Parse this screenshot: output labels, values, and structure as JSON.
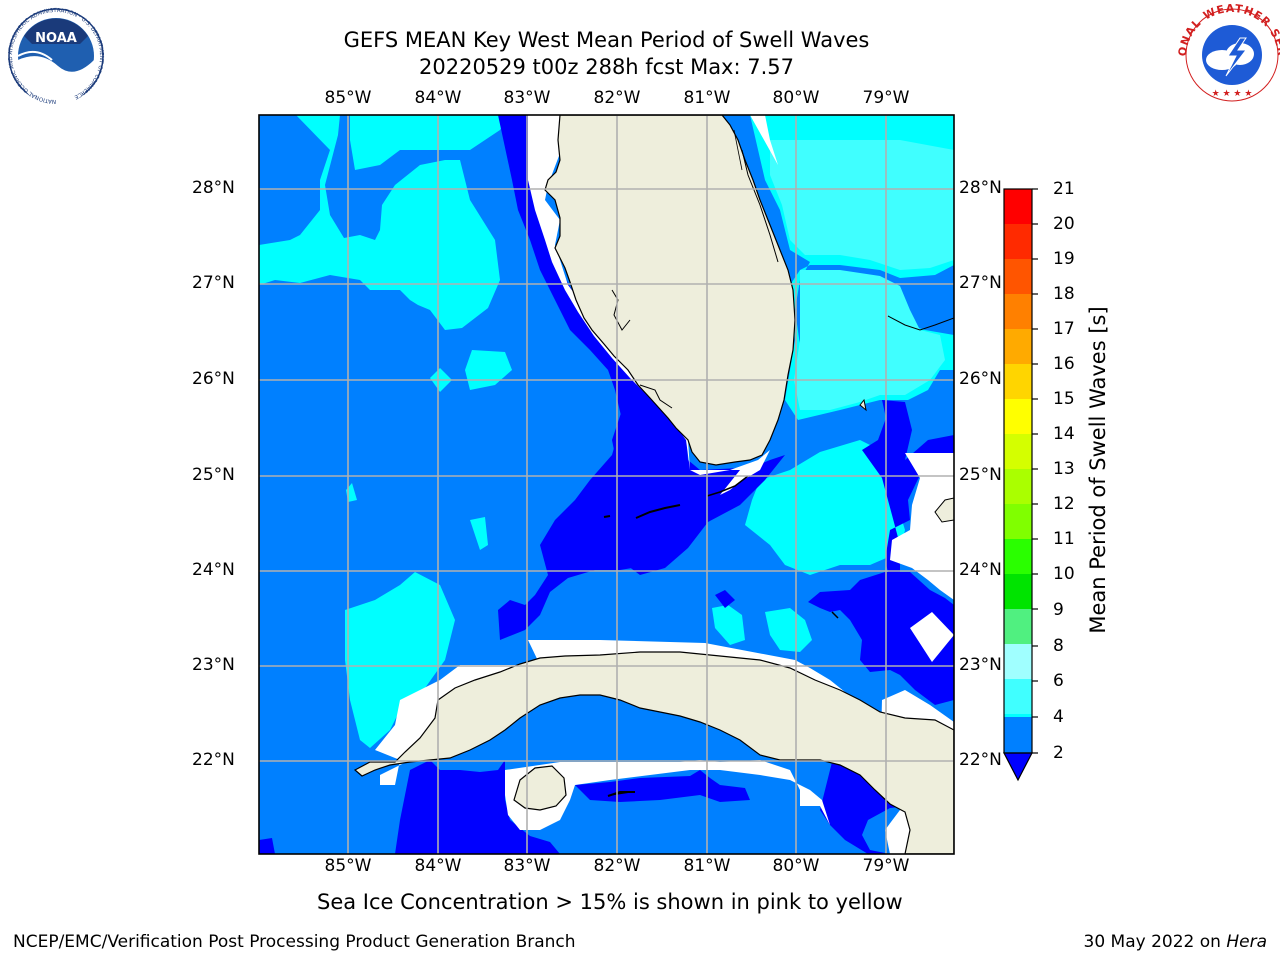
{
  "header": {
    "title_line1": "GEFS MEAN Key West Mean Period of Swell Waves",
    "title_line2": "20220529 t00z 288h fcst   Max: 7.57"
  },
  "logos": {
    "left": {
      "name": "NOAA",
      "ring_text": "NATIONAL OCEANIC AND ATMOSPHERIC ADMINISTRATION · U.S. DEPARTMENT OF COMMERCE"
    },
    "right": {
      "name": "NATIONAL WEATHER SERVICE"
    }
  },
  "map": {
    "lon_labels": [
      "85°W",
      "84°W",
      "83°W",
      "82°W",
      "81°W",
      "80°W",
      "79°W"
    ],
    "lat_labels": [
      "28°N",
      "27°N",
      "26°N",
      "25°N",
      "24°N",
      "23°N",
      "22°N"
    ],
    "extent": {
      "lon_min": -86.0,
      "lon_max": -78.25,
      "lat_min": 21.0,
      "lat_max": 28.75
    },
    "colors": {
      "ocean_2_4": "#0080ff",
      "ocean_lt2": "#0000ff",
      "ocean_4_6": "#00ffff",
      "ocean_6_8": "#40ffff",
      "land": "#eeeedc",
      "missing": "#ffffff",
      "grid": "#b0b0b0"
    }
  },
  "colorbar": {
    "label": "Mean Period of Swell Waves [s]",
    "ticks": [
      "21",
      "20",
      "19",
      "18",
      "17",
      "16",
      "15",
      "14",
      "13",
      "12",
      "11",
      "10",
      "9",
      "8",
      "6",
      "4",
      "2"
    ],
    "colors": [
      "#ff0000",
      "#ff2a00",
      "#ff5500",
      "#ff8000",
      "#ffaa00",
      "#ffd500",
      "#ffff00",
      "#d4ff00",
      "#aaff00",
      "#80ff00",
      "#2aff00",
      "#00e400",
      "#50f080",
      "#a0ffff",
      "#40ffff",
      "#00ffff",
      "#0080ff"
    ],
    "under_color": "#0000ff"
  },
  "notes": {
    "sea_ice": "Sea Ice Concentration > 15% is shown in pink to yellow"
  },
  "footer": {
    "left": "NCEP/EMC/Verification Post Processing Product Generation Branch",
    "date": "30 May 2022 on",
    "system": "Hera"
  }
}
